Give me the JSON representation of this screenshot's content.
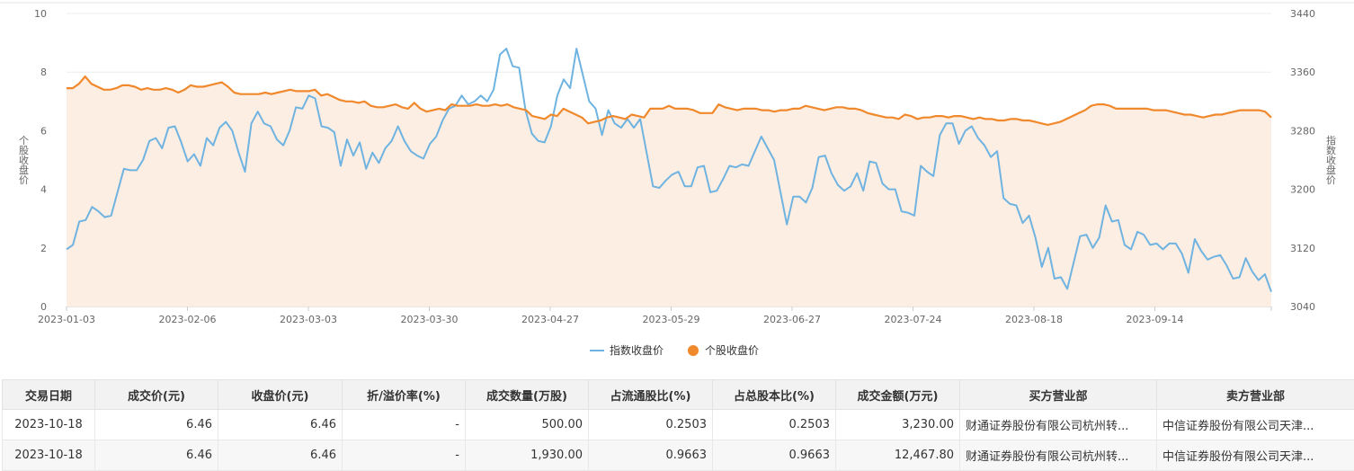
{
  "colors": {
    "index_line": "#6fb3e0",
    "stock_line": "#f0882c",
    "stock_area": "#fdeee4",
    "grid": "#ececec",
    "axis": "#cccccc"
  },
  "chart_data": {
    "type": "line",
    "xlabels": [
      "2023-01-03",
      "2023-02-06",
      "2023-03-03",
      "2023-03-30",
      "2023-04-27",
      "2023-05-29",
      "2023-06-27",
      "2023-07-24",
      "2023-08-18",
      "2023-09-14"
    ],
    "left_axis": {
      "title": "个股收盘价",
      "min": 0,
      "max": 10,
      "ticks": [
        0,
        2,
        4,
        6,
        8,
        10
      ]
    },
    "right_axis": {
      "title": "指数收盘价",
      "min": 3040,
      "max": 3440,
      "ticks": [
        3040,
        3120,
        3200,
        3280,
        3360,
        3440
      ]
    },
    "legend": [
      "指数收盘价",
      "个股收盘价"
    ],
    "series": [
      {
        "name": "指数收盘价",
        "axis": "left",
        "values": [
          1.95,
          2.1,
          2.9,
          2.95,
          3.4,
          3.25,
          3.05,
          3.1,
          3.9,
          4.7,
          4.65,
          4.65,
          5.0,
          5.65,
          5.75,
          5.4,
          6.1,
          6.15,
          5.6,
          4.95,
          5.2,
          4.8,
          5.75,
          5.5,
          6.1,
          6.3,
          6.0,
          5.25,
          4.6,
          6.25,
          6.65,
          6.25,
          6.15,
          5.7,
          5.5,
          6.0,
          6.8,
          6.75,
          7.2,
          7.1,
          6.15,
          6.1,
          5.95,
          4.8,
          5.7,
          5.15,
          5.6,
          4.7,
          5.25,
          4.9,
          5.4,
          5.65,
          6.15,
          5.65,
          5.3,
          5.15,
          5.05,
          5.55,
          5.8,
          6.35,
          6.75,
          6.85,
          7.2,
          6.9,
          7.0,
          7.2,
          7.0,
          7.4,
          8.6,
          8.8,
          8.2,
          8.15,
          6.7,
          5.9,
          5.65,
          5.6,
          6.15,
          7.2,
          7.75,
          7.45,
          8.8,
          7.9,
          7.0,
          6.75,
          5.85,
          6.7,
          6.25,
          6.1,
          6.4,
          6.1,
          6.4,
          5.25,
          4.1,
          4.05,
          4.3,
          4.5,
          4.6,
          4.1,
          4.1,
          4.75,
          4.8,
          3.9,
          3.95,
          4.35,
          4.8,
          4.75,
          4.85,
          4.8,
          5.3,
          5.8,
          5.4,
          5.0,
          3.9,
          2.8,
          3.75,
          3.75,
          3.55,
          4.05,
          5.1,
          5.15,
          4.55,
          4.15,
          3.95,
          4.1,
          4.55,
          3.95,
          4.95,
          4.9,
          4.2,
          4.0,
          4.0,
          3.25,
          3.2,
          3.1,
          4.8,
          4.6,
          4.45,
          5.85,
          6.25,
          6.25,
          5.55,
          6.0,
          6.15,
          5.75,
          5.5,
          5.1,
          5.3,
          3.7,
          3.5,
          3.45,
          2.85,
          3.1,
          2.35,
          1.35,
          2.0,
          0.95,
          1.0,
          0.6,
          1.5,
          2.4,
          2.45,
          2.0,
          2.35,
          3.45,
          2.9,
          2.95,
          2.1,
          1.95,
          2.55,
          2.45,
          2.1,
          2.15,
          1.95,
          2.15,
          2.15,
          1.8,
          1.15,
          2.3,
          1.9,
          1.6,
          1.7,
          1.75,
          1.4,
          0.95,
          1.0,
          1.65,
          1.2,
          0.9,
          1.1,
          0.5
        ]
      },
      {
        "name": "个股收盘价",
        "axis": "right",
        "values": [
          7.45,
          7.45,
          7.6,
          7.85,
          7.6,
          7.5,
          7.4,
          7.4,
          7.45,
          7.55,
          7.55,
          7.5,
          7.4,
          7.45,
          7.4,
          7.4,
          7.45,
          7.4,
          7.3,
          7.4,
          7.55,
          7.5,
          7.5,
          7.55,
          7.6,
          7.65,
          7.5,
          7.3,
          7.25,
          7.25,
          7.25,
          7.25,
          7.3,
          7.25,
          7.3,
          7.35,
          7.4,
          7.35,
          7.35,
          7.35,
          7.4,
          7.2,
          7.25,
          7.15,
          7.05,
          7.0,
          7.0,
          6.95,
          7.0,
          6.85,
          6.8,
          6.8,
          6.85,
          6.9,
          6.8,
          6.75,
          6.95,
          6.75,
          6.65,
          6.7,
          6.75,
          6.7,
          6.9,
          6.85,
          6.85,
          6.85,
          6.9,
          6.85,
          6.85,
          6.9,
          6.85,
          6.9,
          6.8,
          6.75,
          6.7,
          6.5,
          6.45,
          6.4,
          6.55,
          6.5,
          6.75,
          6.65,
          6.55,
          6.45,
          6.25,
          6.3,
          6.35,
          6.45,
          6.5,
          6.45,
          6.4,
          6.55,
          6.5,
          6.45,
          6.75,
          6.75,
          6.75,
          6.85,
          6.75,
          6.75,
          6.75,
          6.7,
          6.6,
          6.6,
          6.6,
          6.9,
          6.8,
          6.75,
          6.7,
          6.75,
          6.75,
          6.75,
          6.7,
          6.7,
          6.65,
          6.7,
          6.7,
          6.75,
          6.75,
          6.85,
          6.8,
          6.75,
          6.7,
          6.75,
          6.8,
          6.8,
          6.75,
          6.75,
          6.7,
          6.6,
          6.55,
          6.5,
          6.45,
          6.45,
          6.4,
          6.55,
          6.5,
          6.4,
          6.45,
          6.45,
          6.5,
          6.5,
          6.45,
          6.5,
          6.5,
          6.45,
          6.4,
          6.45,
          6.4,
          6.4,
          6.35,
          6.35,
          6.4,
          6.4,
          6.35,
          6.35,
          6.3,
          6.25,
          6.2,
          6.25,
          6.3,
          6.4,
          6.5,
          6.6,
          6.7,
          6.85,
          6.9,
          6.9,
          6.85,
          6.75,
          6.75,
          6.75,
          6.75,
          6.75,
          6.75,
          6.7,
          6.7,
          6.7,
          6.65,
          6.6,
          6.55,
          6.55,
          6.5,
          6.45,
          6.5,
          6.55,
          6.55,
          6.6,
          6.65,
          6.7,
          6.7,
          6.7,
          6.7,
          6.65,
          6.45
        ]
      }
    ]
  },
  "table": {
    "headers": [
      "交易日期",
      "成交价(元)",
      "收盘价(元)",
      "折/溢价率(%)",
      "成交数量(万股)",
      "占流通股比(%)",
      "占总股本比(%)",
      "成交金额(万元)",
      "买方营业部",
      "卖方营业部"
    ],
    "rows": [
      [
        "2023-10-18",
        "6.46",
        "6.46",
        "-",
        "500.00",
        "0.2503",
        "0.2503",
        "3,230.00",
        "财通证券股份有限公司杭州转...",
        "中信证券股份有限公司天津..."
      ],
      [
        "2023-10-18",
        "6.46",
        "6.46",
        "-",
        "1,930.00",
        "0.9663",
        "0.9663",
        "12,467.80",
        "财通证券股份有限公司杭州转...",
        "中信证券股份有限公司天津..."
      ]
    ]
  }
}
